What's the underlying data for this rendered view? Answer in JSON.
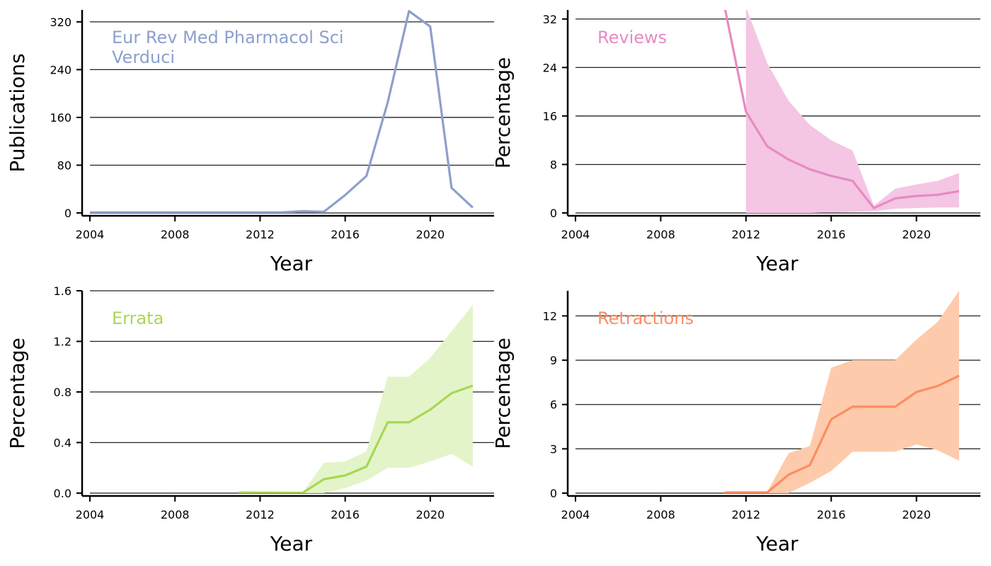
{
  "chart_data": [
    {
      "type": "line",
      "id": "publications",
      "xlabel": "Year",
      "ylabel": "Publications",
      "annotation": [
        "Eur Rev Med Pharmacol Sci",
        "Verduci"
      ],
      "color": "#8da0cb",
      "xlim": [
        2004,
        2023
      ],
      "ylim": [
        0,
        340
      ],
      "xticks": [
        2004,
        2008,
        2012,
        2016,
        2020
      ],
      "yticks": [
        0,
        80,
        160,
        240,
        320
      ],
      "grid": "horizontal",
      "x": [
        2004,
        2005,
        2006,
        2007,
        2008,
        2009,
        2010,
        2011,
        2012,
        2013,
        2014,
        2015,
        2016,
        2017,
        2018,
        2019,
        2020,
        2021,
        2022
      ],
      "values": [
        1,
        1,
        1,
        1,
        1,
        1,
        1,
        1,
        1,
        1,
        3,
        2,
        30,
        62,
        185,
        338,
        312,
        42,
        9
      ]
    },
    {
      "type": "line",
      "id": "reviews",
      "xlabel": "Year",
      "ylabel": "Percentage",
      "annotation": [
        "Reviews"
      ],
      "color": "#e78ac3",
      "band_color": "#f4c6e3",
      "xlim": [
        2004,
        2023
      ],
      "ylim": [
        0,
        33.5
      ],
      "xticks": [
        2004,
        2008,
        2012,
        2016,
        2020
      ],
      "yticks": [
        0,
        8,
        16,
        24,
        32
      ],
      "grid": "horizontal",
      "x": [
        2011,
        2012,
        2013,
        2014,
        2015,
        2016,
        2017,
        2018,
        2019,
        2020,
        2021,
        2022
      ],
      "values": [
        34,
        16.7,
        11,
        8.8,
        7.2,
        6.1,
        5.3,
        0.8,
        2.4,
        2.8,
        3.0,
        3.6
      ],
      "band_x": [
        2012,
        2013,
        2014,
        2015,
        2016,
        2017,
        2018,
        2019,
        2020,
        2021,
        2022
      ],
      "band_lower": [
        0,
        0,
        0,
        0,
        0.1,
        0.2,
        0.3,
        0.7,
        0.8,
        0.9,
        0.9
      ],
      "band_upper": [
        34,
        24.7,
        18.5,
        14.5,
        12,
        10.3,
        1.2,
        4,
        4.7,
        5.3,
        6.6
      ]
    },
    {
      "type": "line",
      "id": "errata",
      "xlabel": "Year",
      "ylabel": "Percentage",
      "annotation": [
        "Errata"
      ],
      "color": "#a6d854",
      "band_color": "#e4f4c9",
      "xlim": [
        2004,
        2023
      ],
      "ylim": [
        0,
        1.6
      ],
      "xticks": [
        2004,
        2008,
        2012,
        2016,
        2020
      ],
      "yticks": [
        0.0,
        0.4,
        0.8,
        1.2,
        1.6
      ],
      "ytick_labels": [
        "0.0",
        "0.4",
        "0.8",
        "1.2",
        "1.6"
      ],
      "grid": "horizontal",
      "x": [
        2011,
        2012,
        2013,
        2014,
        2015,
        2016,
        2017,
        2018,
        2019,
        2020,
        2021,
        2022
      ],
      "values": [
        0.005,
        0.004,
        0.003,
        0.002,
        0.11,
        0.14,
        0.21,
        0.56,
        0.56,
        0.66,
        0.79,
        0.85
      ],
      "band_x": [
        2011,
        2012,
        2013,
        2014,
        2015,
        2016,
        2017,
        2018,
        2019,
        2020,
        2021,
        2022
      ],
      "band_lower": [
        0,
        0,
        0,
        0,
        0,
        0.04,
        0.1,
        0.2,
        0.2,
        0.25,
        0.31,
        0.21
      ],
      "band_upper": [
        0.01,
        0.01,
        0.008,
        0.005,
        0.24,
        0.25,
        0.33,
        0.92,
        0.92,
        1.07,
        1.28,
        1.49
      ]
    },
    {
      "type": "line",
      "id": "retractions",
      "xlabel": "Year",
      "ylabel": "Percentage",
      "annotation": [
        "Retractions"
      ],
      "color": "#fc8d62",
      "band_color": "#fdcbab",
      "xlim": [
        2004,
        2023
      ],
      "ylim": [
        0,
        13.7
      ],
      "xticks": [
        2004,
        2008,
        2012,
        2016,
        2020
      ],
      "yticks": [
        0,
        3,
        6,
        9,
        12
      ],
      "grid": "horizontal",
      "x": [
        2011,
        2012,
        2013,
        2014,
        2015,
        2016,
        2017,
        2018,
        2019,
        2020,
        2021,
        2022
      ],
      "values": [
        0.05,
        0.05,
        0.05,
        1.25,
        1.9,
        5,
        5.85,
        5.85,
        5.85,
        6.85,
        7.25,
        7.95
      ],
      "band_x": [
        2011,
        2012,
        2013,
        2014,
        2015,
        2016,
        2017,
        2018,
        2019,
        2020,
        2021,
        2022
      ],
      "band_lower": [
        0,
        0,
        0,
        0,
        0.7,
        1.5,
        2.8,
        2.8,
        2.8,
        3.3,
        2.9,
        2.2
      ],
      "band_upper": [
        0.1,
        0.1,
        0.1,
        2.7,
        3.2,
        8.5,
        9,
        9,
        9,
        10.4,
        11.6,
        13.7
      ]
    }
  ]
}
